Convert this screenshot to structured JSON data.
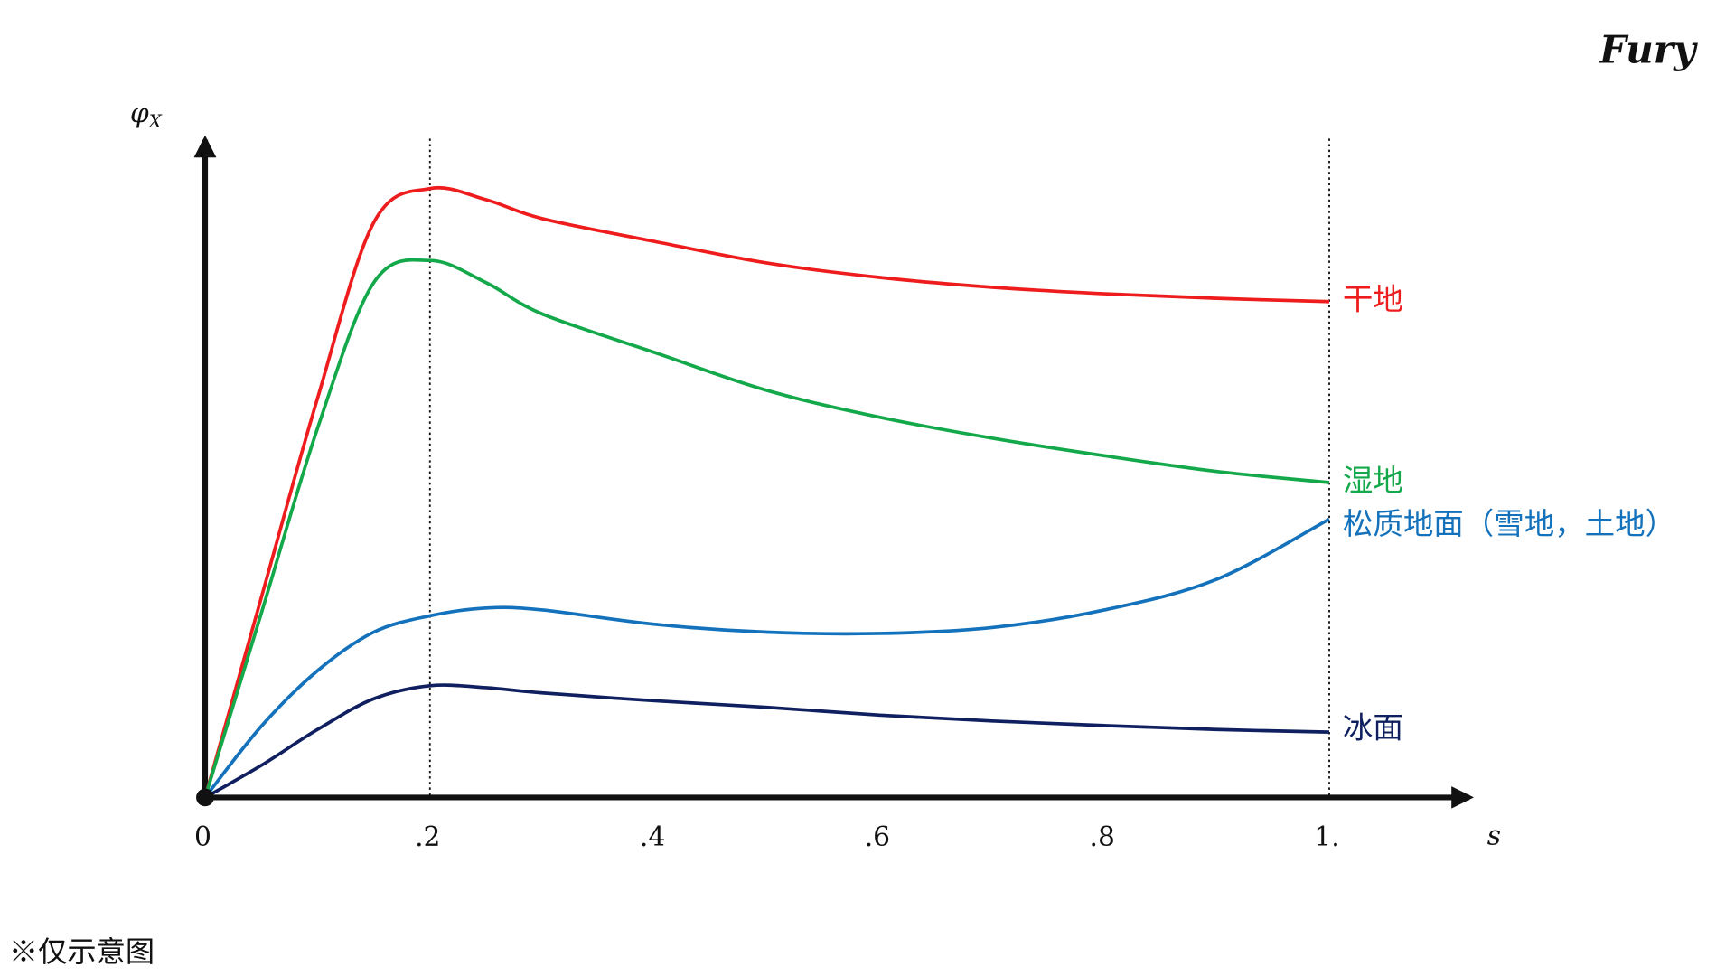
{
  "chart_data": {
    "type": "line",
    "logo": "Fury",
    "y_label": "φ",
    "y_label_sub": "X",
    "x_label": "s",
    "note": "※仅示意图",
    "x": [
      0,
      0.05,
      0.1,
      0.15,
      0.2,
      0.25,
      0.3,
      0.4,
      0.5,
      0.6,
      0.7,
      0.8,
      0.9,
      1.0
    ],
    "xlim": [
      0,
      1.12
    ],
    "ylim": [
      0,
      1
    ],
    "xticks": [
      0,
      {
        "value": 0.2,
        "label": ".2"
      },
      {
        "value": 0.4,
        "label": ".4"
      },
      {
        "value": 0.6,
        "label": ".6"
      },
      {
        "value": 0.8,
        "label": ".8"
      },
      {
        "value": 1.0,
        "label": "1."
      }
    ],
    "vlines": [
      0.2,
      1.0
    ],
    "series": [
      {
        "name": "干地",
        "color": "#ee1c1c",
        "values": [
          0,
          0.306,
          0.611,
          0.88,
          0.932,
          0.915,
          0.886,
          0.851,
          0.818,
          0.796,
          0.781,
          0.771,
          0.764,
          0.759
        ]
      },
      {
        "name": "湿地",
        "color": "#13a84a",
        "values": [
          0,
          0.282,
          0.565,
          0.788,
          0.822,
          0.788,
          0.74,
          0.681,
          0.623,
          0.582,
          0.55,
          0.523,
          0.499,
          0.482
        ]
      },
      {
        "name": "松质地面（雪地，土地）",
        "color": "#1372bb",
        "values": [
          0,
          0.109,
          0.194,
          0.253,
          0.278,
          0.29,
          0.287,
          0.265,
          0.253,
          0.251,
          0.26,
          0.287,
          0.334,
          0.426
        ]
      },
      {
        "name": "冰面",
        "color": "#0f1f5f",
        "values": [
          0,
          0.049,
          0.104,
          0.151,
          0.171,
          0.168,
          0.16,
          0.148,
          0.138,
          0.126,
          0.117,
          0.11,
          0.104,
          0.1
        ]
      }
    ]
  }
}
